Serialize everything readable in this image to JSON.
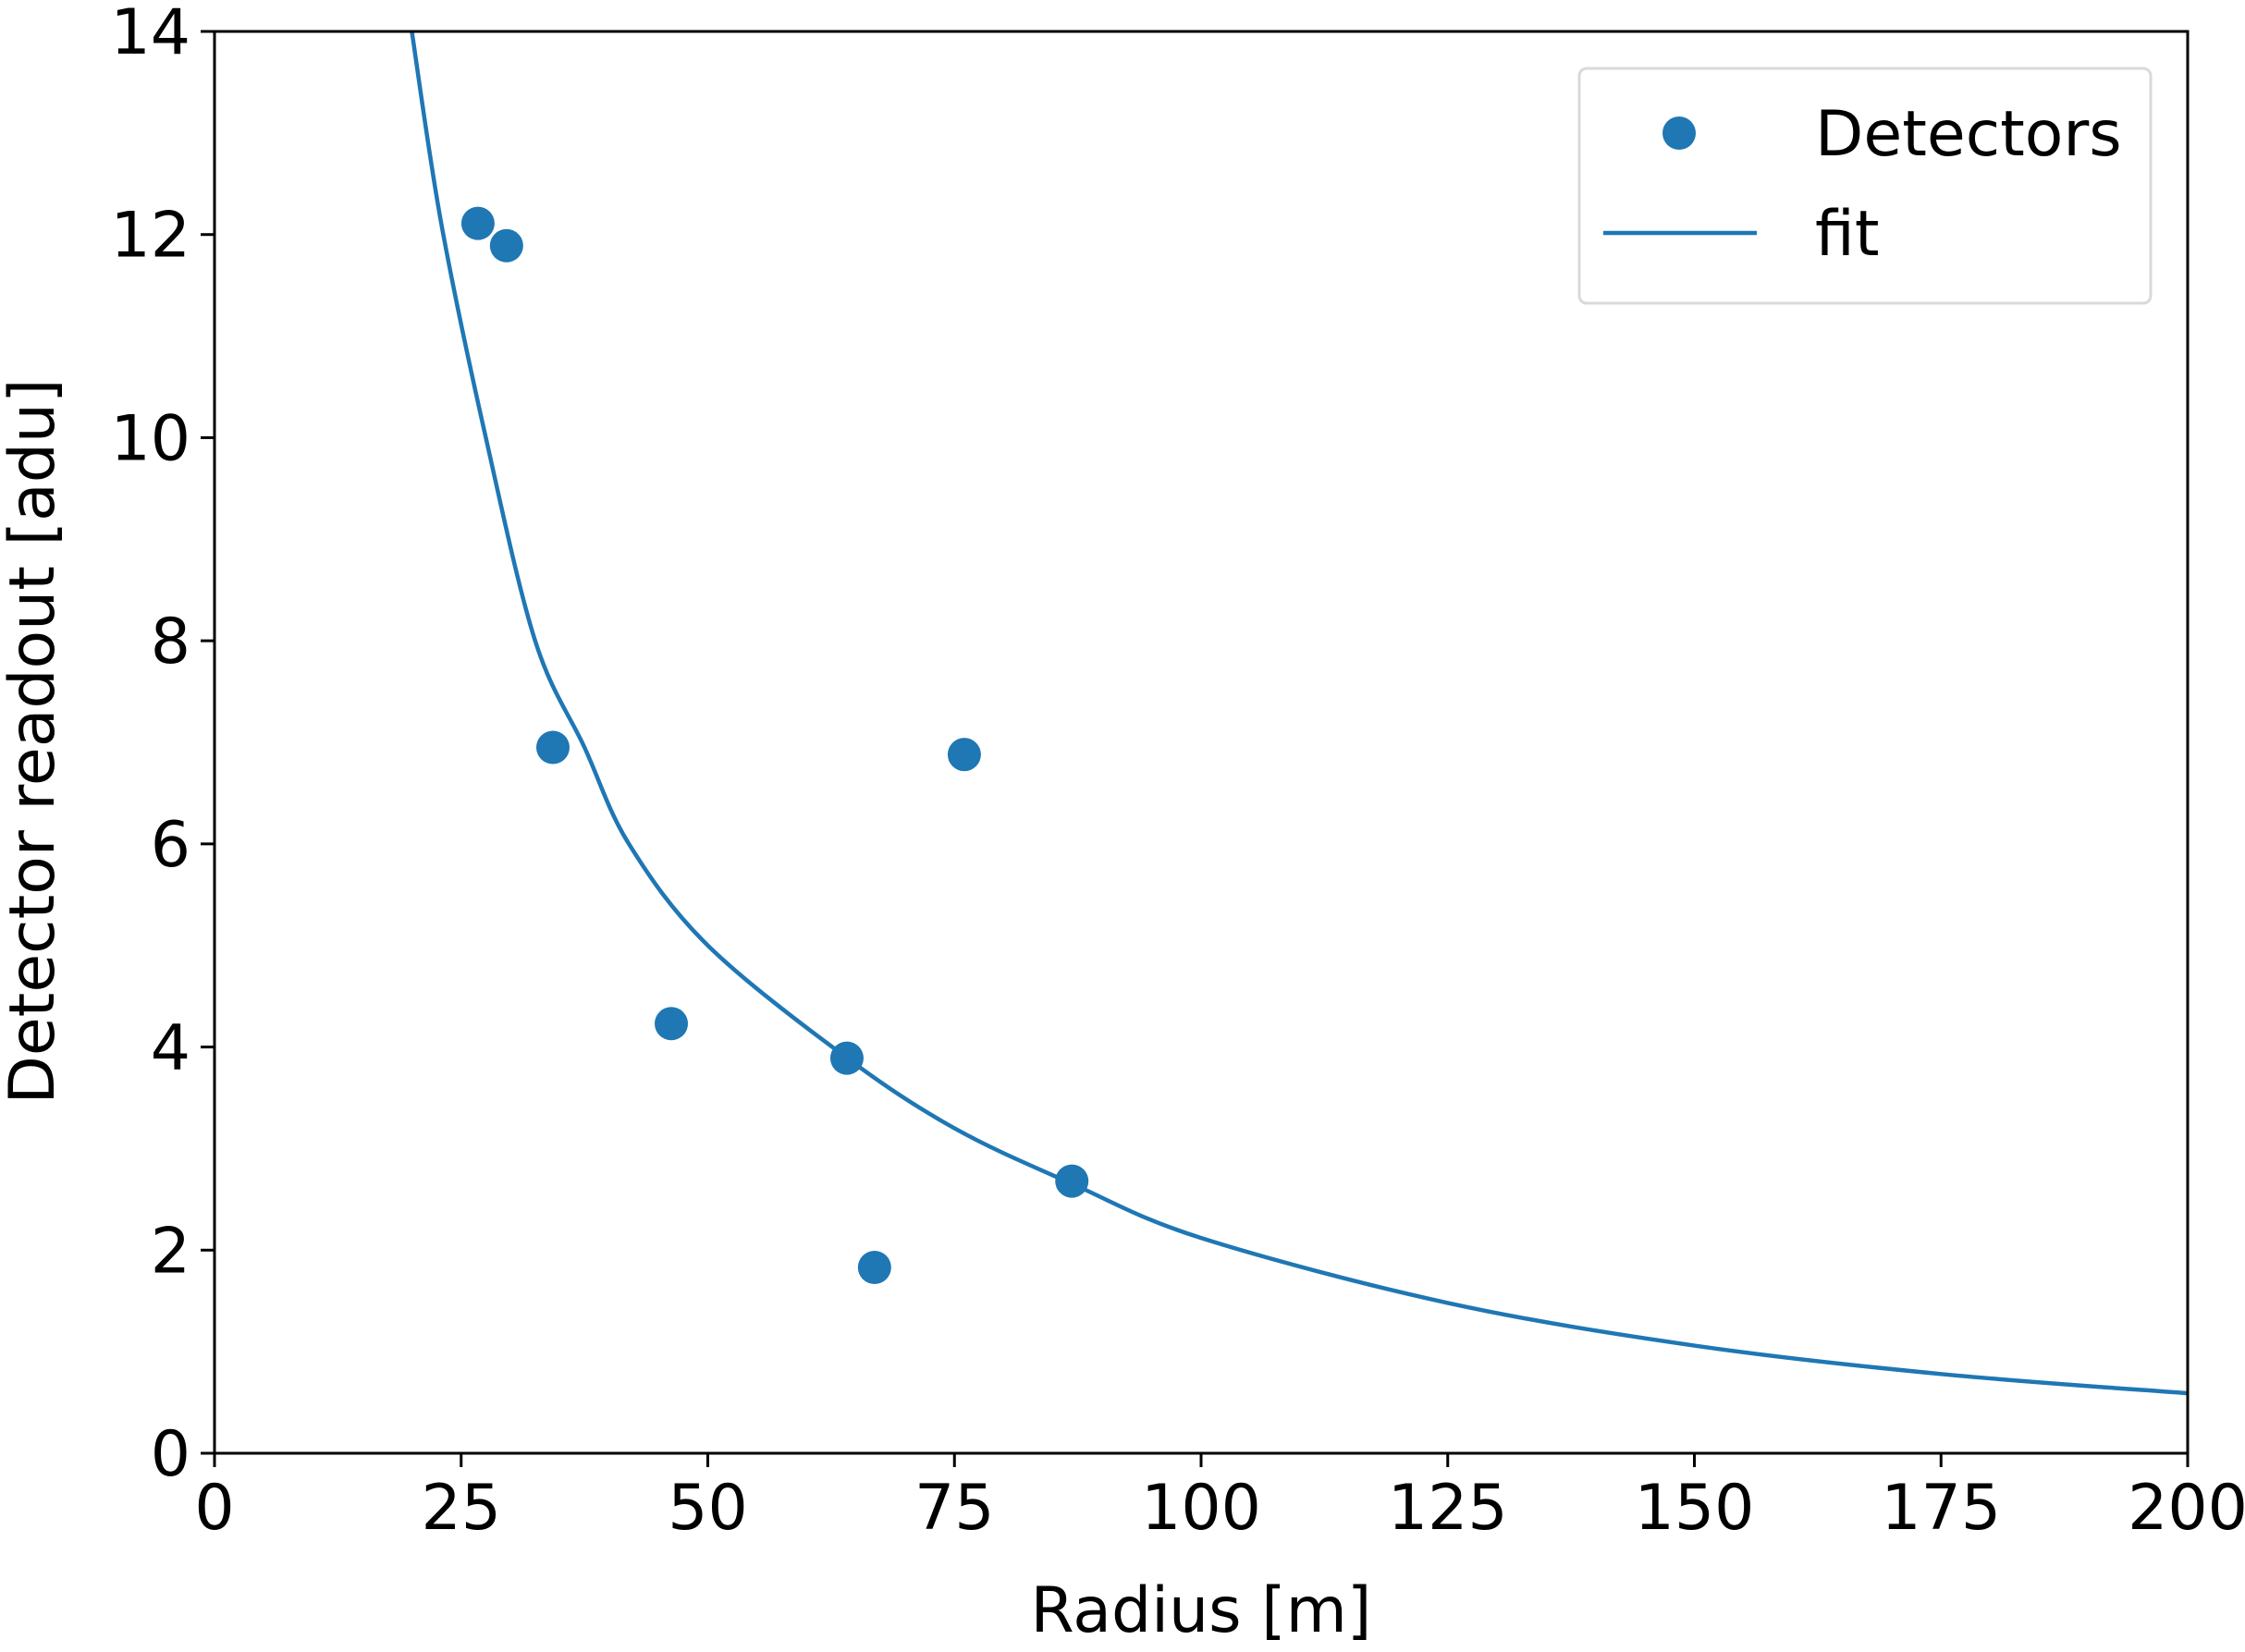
{
  "chart_data": {
    "type": "scatter",
    "xlabel": "Radius [m]",
    "ylabel": "Detector readout [adu]",
    "xlim": [
      0,
      200
    ],
    "xticks": [
      0,
      25,
      50,
      75,
      100,
      125,
      150,
      175,
      200
    ],
    "ylim": [
      0,
      14
    ],
    "yticks": [
      0,
      2,
      4,
      6,
      8,
      10,
      12,
      14
    ],
    "legend": "upper right",
    "series": [
      {
        "name": "Detectors",
        "type": "scatter",
        "color": "#1f77b4",
        "x": [
          26.7,
          29.6,
          34.3,
          46.3,
          64.1,
          66.9,
          76.0,
          86.9
        ],
        "values": [
          12.11,
          11.89,
          6.95,
          4.23,
          3.89,
          1.83,
          6.88,
          2.68
        ]
      },
      {
        "name": "fit",
        "type": "line",
        "color": "#1f77b4",
        "x": [
          20,
          23,
          27.5,
          32.5,
          37.5,
          42,
          50,
          64,
          75,
          87,
          100,
          125,
          150,
          175,
          200
        ],
        "values": [
          14,
          12.1,
          10,
          8,
          6.95,
          6,
          5,
          3.9,
          3.2,
          2.65,
          2.12,
          1.48,
          1.06,
          0.78,
          0.59
        ]
      }
    ]
  }
}
